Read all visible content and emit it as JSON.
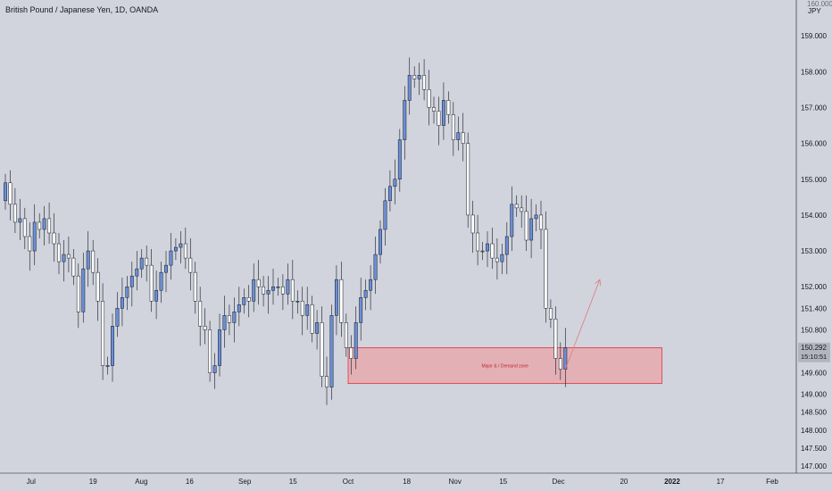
{
  "header": {
    "title": "British Pound / Japanese Yen, 1D, OANDA",
    "currency": "JPY",
    "top_clip_label": "160.000"
  },
  "price_badge": {
    "price": "150.292",
    "countdown": "15:10:51"
  },
  "zone": {
    "label": "Major & / Demand zone"
  },
  "colors": {
    "background": "#d1d4dc",
    "bull_body": "#6b8fd6",
    "bear_body": "#ffffff",
    "candle_border": "#131722",
    "zone_fill": "#e8a4a9",
    "zone_border": "#e0333c",
    "zone_text": "#c0262e",
    "arrow": "#e07a80",
    "axis_text": "#131722",
    "badge_bg": "#b2b5be"
  },
  "chart_data": {
    "type": "candlestick",
    "symbol": "GBPJPY",
    "timeframe": "1D",
    "y_ticks": [
      147.0,
      147.5,
      148.0,
      148.5,
      149.0,
      149.6,
      150.2,
      150.8,
      151.4,
      152.0,
      153.0,
      154.0,
      155.0,
      156.0,
      157.0,
      158.0,
      159.0
    ],
    "y_tick_labels": [
      "147.000",
      "147.500",
      "148.000",
      "148.500",
      "149.000",
      "149.600",
      "150.200",
      "150.800",
      "151.400",
      "152.000",
      "153.000",
      "154.000",
      "155.000",
      "156.000",
      "157.000",
      "158.000",
      "159.000"
    ],
    "x_ticks": [
      {
        "label": "Jul",
        "date": "2021-07-01"
      },
      {
        "label": "19",
        "date": "2021-07-19"
      },
      {
        "label": "Aug",
        "date": "2021-08-02"
      },
      {
        "label": "16",
        "date": "2021-08-16"
      },
      {
        "label": "Sep",
        "date": "2021-09-01"
      },
      {
        "label": "15",
        "date": "2021-09-15"
      },
      {
        "label": "Oct",
        "date": "2021-10-01"
      },
      {
        "label": "18",
        "date": "2021-10-18"
      },
      {
        "label": "Nov",
        "date": "2021-11-01"
      },
      {
        "label": "15",
        "date": "2021-11-15"
      },
      {
        "label": "Dec",
        "date": "2021-12-01"
      },
      {
        "label": "20",
        "date": "2021-12-20"
      },
      {
        "label": "2022",
        "date": "2022-01-03"
      },
      {
        "label": "17",
        "date": "2022-01-17"
      },
      {
        "label": "Feb",
        "date": "2022-02-01"
      }
    ],
    "x_range": [
      "2021-06-22",
      "2022-02-08"
    ],
    "y_range": [
      146.8,
      160.0
    ],
    "closes": [
      154.9,
      154.3,
      153.8,
      153.9,
      153.4,
      153.0,
      153.8,
      153.6,
      153.9,
      153.5,
      153.2,
      152.7,
      152.9,
      152.8,
      152.3,
      151.3,
      152.5,
      153.0,
      152.4,
      151.6,
      149.8,
      149.8,
      150.9,
      151.4,
      151.7,
      152.0,
      152.3,
      152.5,
      152.8,
      152.6,
      151.6,
      151.9,
      152.4,
      152.6,
      153.0,
      153.1,
      153.2,
      152.8,
      152.4,
      151.6,
      150.9,
      150.8,
      149.6,
      149.8,
      150.8,
      151.2,
      151.0,
      151.3,
      151.5,
      151.7,
      151.6,
      152.2,
      152.0,
      151.8,
      151.9,
      152.0,
      152.0,
      151.8,
      152.2,
      151.6,
      151.6,
      151.2,
      151.5,
      150.7,
      151.0,
      149.5,
      149.2,
      151.2,
      152.2,
      151.0,
      150.3,
      150.0,
      151.0,
      151.7,
      151.9,
      152.2,
      152.9,
      153.6,
      154.4,
      154.8,
      155.0,
      156.1,
      157.2,
      157.9,
      157.8,
      157.9,
      157.5,
      157.0,
      156.9,
      156.5,
      157.2,
      156.8,
      156.1,
      156.3,
      156.0,
      154.0,
      153.5,
      153.0,
      153.0,
      153.2,
      152.8,
      152.7,
      152.9,
      153.4,
      154.3,
      154.2,
      154.1,
      153.3,
      153.9,
      154.0,
      153.6,
      151.4,
      151.1,
      150.0,
      149.7,
      150.3
    ],
    "last_price": 150.292,
    "zone_range": {
      "from": 149.3,
      "to": 150.3,
      "start": "2021-10-01",
      "end": "2021-12-31"
    },
    "arrow": {
      "from": {
        "date": "2021-12-03",
        "price": 149.7
      },
      "to": {
        "date": "2021-12-13",
        "price": 152.2
      }
    },
    "grid": false
  }
}
